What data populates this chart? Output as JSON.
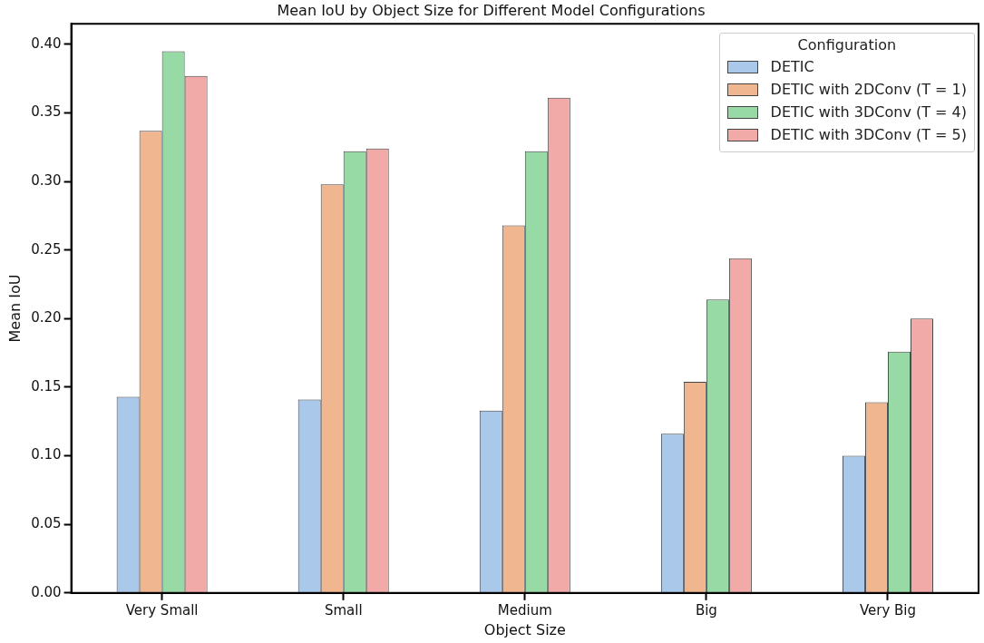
{
  "chart_data": {
    "type": "bar",
    "title": "Mean IoU by Object Size for Different Model Configurations",
    "xlabel": "Object Size",
    "ylabel": "Mean IoU",
    "legend_title": "Configuration",
    "legend": "top right",
    "grid": false,
    "categories": [
      "Very Small",
      "Small",
      "Medium",
      "Big",
      "Very Big"
    ],
    "ylim": [
      0,
      0.415
    ],
    "yticks": [
      {
        "value": 0,
        "label": "0.00"
      },
      {
        "value": 0.05,
        "label": "0.05"
      },
      {
        "value": 0.1,
        "label": "0.10"
      },
      {
        "value": 0.15,
        "label": "0.15"
      },
      {
        "value": 0.2,
        "label": "0.20"
      },
      {
        "value": 0.25,
        "label": "0.25"
      },
      {
        "value": 0.3,
        "label": "0.30"
      },
      {
        "value": 0.35,
        "label": "0.35"
      },
      {
        "value": 0.4,
        "label": "0.40"
      }
    ],
    "series": [
      {
        "name": "DETIC",
        "color": "#aac8ea",
        "values": [
          0.143,
          0.141,
          0.133,
          0.116,
          0.1
        ]
      },
      {
        "name": "DETIC with 2DConv (T = 1)",
        "color": "#f0b690",
        "values": [
          0.337,
          0.298,
          0.268,
          0.154,
          0.139
        ]
      },
      {
        "name": "DETIC with 3DConv (T = 4)",
        "color": "#98daa6",
        "values": [
          0.395,
          0.322,
          0.322,
          0.214,
          0.176
        ]
      },
      {
        "name": "DETIC with 3DConv (T = 5)",
        "color": "#f2aaa8",
        "values": [
          0.377,
          0.324,
          0.361,
          0.244,
          0.2
        ]
      }
    ]
  }
}
